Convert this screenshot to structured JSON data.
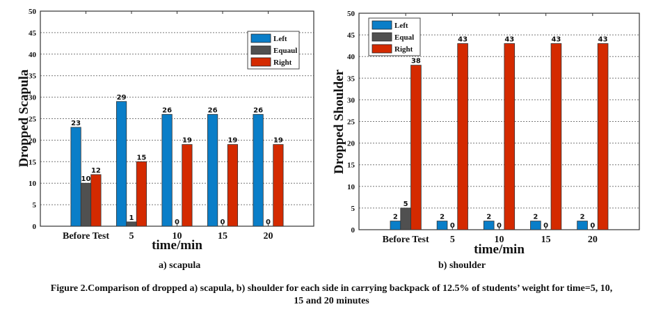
{
  "chart_data": [
    {
      "type": "bar",
      "title": "",
      "subtitle": "a) scapula",
      "xlabel": "time/min",
      "ylabel": "Dropped Scapula",
      "categories": [
        "Before Test",
        "5",
        "10",
        "15",
        "20"
      ],
      "ylim": [
        0,
        50
      ],
      "yticks": [
        0,
        5,
        10,
        15,
        20,
        25,
        30,
        35,
        40,
        45,
        50
      ],
      "grid": true,
      "legend_position": "top-right",
      "series": [
        {
          "name": "Left",
          "color": "#0a7ec8",
          "values": [
            23,
            29,
            26,
            26,
            26
          ]
        },
        {
          "name": "Equaul",
          "color": "#505050",
          "values": [
            10,
            1,
            0,
            0,
            0
          ]
        },
        {
          "name": "Right",
          "color": "#d42a00",
          "values": [
            12,
            15,
            19,
            19,
            19
          ]
        }
      ]
    },
    {
      "type": "bar",
      "title": "",
      "subtitle": "b) shoulder",
      "xlabel": "time/min",
      "ylabel": "Dropped Shoulder",
      "categories": [
        "Before Test",
        "5",
        "10",
        "15",
        "20"
      ],
      "ylim": [
        0,
        50
      ],
      "yticks": [
        0,
        5,
        10,
        15,
        20,
        25,
        30,
        35,
        40,
        45,
        50
      ],
      "grid": true,
      "legend_position": "top-left",
      "series": [
        {
          "name": "Left",
          "color": "#0a7ec8",
          "values": [
            2,
            2,
            2,
            2,
            2
          ]
        },
        {
          "name": "Equal",
          "color": "#505050",
          "values": [
            5,
            0,
            0,
            0,
            0
          ]
        },
        {
          "name": "Right",
          "color": "#d42a00",
          "values": [
            38,
            43,
            43,
            43,
            43
          ]
        }
      ]
    }
  ],
  "caption": {
    "line1": "Figure 2.Comparison of dropped a) scapula, b) shoulder for each side in carrying backpack of 12.5% of students’ weight for time=5, 10,",
    "line2": "15 and 20 minutes"
  }
}
